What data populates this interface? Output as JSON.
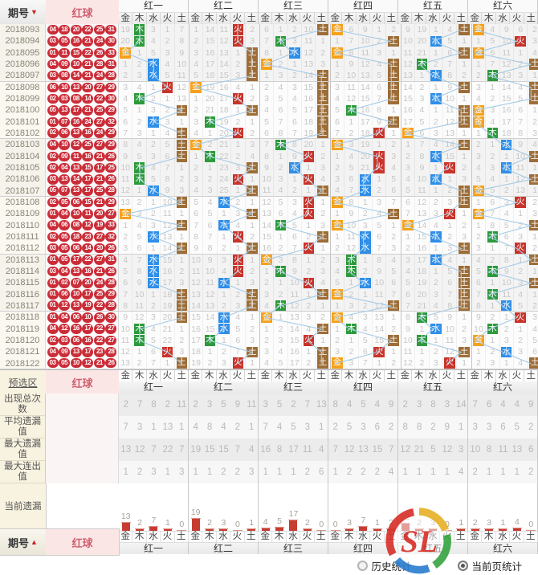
{
  "header": {
    "issue_label": "期号",
    "sort_desc_icon": "▼",
    "sort_asc_icon": "▲",
    "balls_label": "红球"
  },
  "preselect": {
    "label": "预选区",
    "balls_label": "红球"
  },
  "footer": {
    "issue_label": "期号",
    "balls_label": "红球"
  },
  "legend": [
    {
      "label": "历史统计",
      "selected": false
    },
    {
      "label": "当前页统计",
      "selected": true
    }
  ],
  "watermark_text": "SL",
  "chart_data": {
    "type": "table",
    "title": "红球五行走势图 (金木水火土 trend chart, 红一-红六)",
    "groups": [
      "红一",
      "红二",
      "红三",
      "红四",
      "红五",
      "红六"
    ],
    "elements": [
      "金",
      "木",
      "水",
      "火",
      "土"
    ],
    "element_colors": {
      "金": "#f5a11c",
      "木": "#2c9a3c",
      "水": "#2e8ee8",
      "火": "#c8342b",
      "土": "#9d6d38"
    },
    "line_color": "#a6cbe6",
    "ball_color": "#cb2d38",
    "issues": [
      "2018093",
      "2018094",
      "2018095",
      "2018096",
      "2018097",
      "2018098",
      "2018099",
      "2018100",
      "2018101",
      "2018102",
      "2018103",
      "2018104",
      "2018105",
      "2018106",
      "2018107",
      "2018108",
      "2018109",
      "2018110",
      "2018111",
      "2018112",
      "2018113",
      "2018114",
      "2018115",
      "2018116",
      "2018117",
      "2018118",
      "2018119",
      "2018120",
      "2018121",
      "2018122"
    ],
    "balls": [
      [
        "04",
        "18",
        "20",
        "22",
        "25",
        "31"
      ],
      [
        "03",
        "05",
        "16",
        "21",
        "24",
        "30"
      ],
      [
        "01",
        "11",
        "15",
        "22",
        "26",
        "33"
      ],
      [
        "04",
        "09",
        "10",
        "21",
        "28",
        "31"
      ],
      [
        "03",
        "08",
        "14",
        "21",
        "24",
        "28"
      ],
      [
        "06",
        "10",
        "13",
        "20",
        "27",
        "29"
      ],
      [
        "02",
        "03",
        "08",
        "14",
        "22",
        "30"
      ],
      [
        "05",
        "13",
        "17",
        "21",
        "25",
        "29"
      ],
      [
        "01",
        "07",
        "16",
        "24",
        "27",
        "32"
      ],
      [
        "02",
        "06",
        "13",
        "16",
        "24",
        "29"
      ],
      [
        "04",
        "10",
        "12",
        "25",
        "27",
        "29"
      ],
      [
        "02",
        "09",
        "11",
        "16",
        "21",
        "26"
      ],
      [
        "02",
        "04",
        "13",
        "15",
        "17",
        "25"
      ],
      [
        "03",
        "13",
        "14",
        "17",
        "21",
        "26"
      ],
      [
        "05",
        "07",
        "13",
        "17",
        "25",
        "28"
      ],
      [
        "02",
        "05",
        "06",
        "15",
        "21",
        "29"
      ],
      [
        "01",
        "04",
        "10",
        "11",
        "20",
        "27"
      ],
      [
        "04",
        "06",
        "08",
        "12",
        "19",
        "33"
      ],
      [
        "02",
        "05",
        "18",
        "23",
        "27",
        "32"
      ],
      [
        "03",
        "05",
        "06",
        "14",
        "20",
        "26"
      ],
      [
        "01",
        "05",
        "17",
        "22",
        "27",
        "31"
      ],
      [
        "03",
        "04",
        "13",
        "16",
        "21",
        "26"
      ],
      [
        "01",
        "02",
        "07",
        "20",
        "24",
        "28"
      ],
      [
        "01",
        "06",
        "10",
        "17",
        "25",
        "29"
      ],
      [
        "01",
        "12",
        "13",
        "19",
        "22",
        "28"
      ],
      [
        "01",
        "04",
        "06",
        "10",
        "26",
        "30"
      ],
      [
        "04",
        "12",
        "16",
        "17",
        "22",
        "27"
      ],
      [
        "02",
        "03",
        "06",
        "16",
        "22",
        "27"
      ],
      [
        "04",
        "09",
        "13",
        "17",
        "23",
        "28"
      ],
      [
        "03",
        "05",
        "10",
        "12",
        "21",
        "26"
      ]
    ],
    "trend": {
      "init_miss_counters": [
        [
          18,
          0,
          2,
          0,
          6
        ],
        [
          0,
          13,
          10,
          0,
          1
        ],
        [
          5,
          0,
          1,
          9,
          0
        ],
        [
          0,
          5,
          8,
          0,
          1
        ],
        [
          8,
          18,
          0,
          3,
          0
        ],
        [
          0,
          3,
          8,
          5,
          1
        ]
      ],
      "hit_element_index_per_row": [
        [
          1,
          1,
          0,
          2,
          2,
          3,
          1,
          4,
          2,
          4,
          4,
          4,
          1,
          1,
          2,
          4,
          0,
          4,
          2,
          4,
          2,
          2,
          2,
          4,
          4,
          4,
          1,
          1,
          3,
          4
        ],
        [
          3,
          3,
          4,
          4,
          4,
          0,
          3,
          4,
          1,
          3,
          0,
          1,
          4,
          3,
          4,
          2,
          4,
          2,
          3,
          4,
          3,
          3,
          2,
          4,
          4,
          2,
          2,
          1,
          4,
          3
        ],
        [
          4,
          1,
          2,
          0,
          4,
          4,
          4,
          4,
          4,
          4,
          1,
          3,
          2,
          3,
          4,
          3,
          3,
          1,
          4,
          3,
          0,
          1,
          3,
          4,
          1,
          0,
          4,
          3,
          4,
          4
        ],
        [
          0,
          4,
          0,
          4,
          4,
          4,
          4,
          1,
          4,
          3,
          0,
          3,
          3,
          2,
          2,
          0,
          4,
          0,
          2,
          2,
          1,
          1,
          2,
          0,
          4,
          0,
          1,
          4,
          3,
          0
        ],
        [
          4,
          2,
          4,
          1,
          2,
          4,
          2,
          4,
          4,
          0,
          4,
          2,
          3,
          2,
          4,
          4,
          3,
          0,
          2,
          4,
          2,
          4,
          4,
          4,
          4,
          1,
          2,
          1,
          4,
          3
        ],
        [
          0,
          3,
          0,
          4,
          1,
          4,
          4,
          0,
          0,
          1,
          2,
          4,
          2,
          4,
          0,
          3,
          0,
          4,
          1,
          3,
          4,
          1,
          4,
          1,
          2,
          3,
          1,
          0,
          2,
          4
        ]
      ]
    },
    "stats": [
      {
        "label": "出现总次数",
        "values": [
          [
            2,
            7,
            8,
            2,
            11
          ],
          [
            2,
            3,
            5,
            9,
            11
          ],
          [
            3,
            5,
            2,
            7,
            13
          ],
          [
            8,
            4,
            5,
            4,
            9
          ],
          [
            2,
            3,
            8,
            3,
            14
          ],
          [
            7,
            6,
            4,
            4,
            9
          ]
        ]
      },
      {
        "label": "平均遗漏值",
        "values": [
          [
            7,
            3,
            1,
            13,
            1
          ],
          [
            4,
            8,
            4,
            2,
            1
          ],
          [
            7,
            4,
            5,
            3,
            1
          ],
          [
            2,
            5,
            3,
            6,
            2
          ],
          [
            8,
            8,
            2,
            9,
            1
          ],
          [
            3,
            3,
            6,
            5,
            2
          ]
        ]
      },
      {
        "label": "最大遗漏值",
        "values": [
          [
            13,
            12,
            7,
            22,
            7
          ],
          [
            19,
            15,
            15,
            7,
            4
          ],
          [
            16,
            8,
            17,
            11,
            4
          ],
          [
            7,
            12,
            13,
            15,
            7
          ],
          [
            12,
            21,
            5,
            12,
            3
          ],
          [
            10,
            8,
            11,
            13,
            6
          ]
        ]
      },
      {
        "label": "最大连出值",
        "values": [
          [
            1,
            2,
            3,
            1,
            3
          ],
          [
            1,
            1,
            2,
            2,
            3
          ],
          [
            1,
            1,
            1,
            2,
            6
          ],
          [
            1,
            2,
            2,
            2,
            4
          ],
          [
            1,
            1,
            1,
            1,
            4
          ],
          [
            2,
            1,
            1,
            1,
            2
          ]
        ]
      }
    ],
    "current_miss": {
      "label": "当前遗漏",
      "values": [
        [
          13,
          2,
          7,
          1,
          0
        ],
        [
          19,
          2,
          3,
          0,
          1
        ],
        [
          4,
          5,
          17,
          2,
          0
        ],
        [
          0,
          3,
          7,
          1,
          2
        ],
        [
          12,
          2,
          3,
          0,
          1
        ],
        [
          2,
          3,
          1,
          4,
          0
        ]
      ]
    }
  }
}
